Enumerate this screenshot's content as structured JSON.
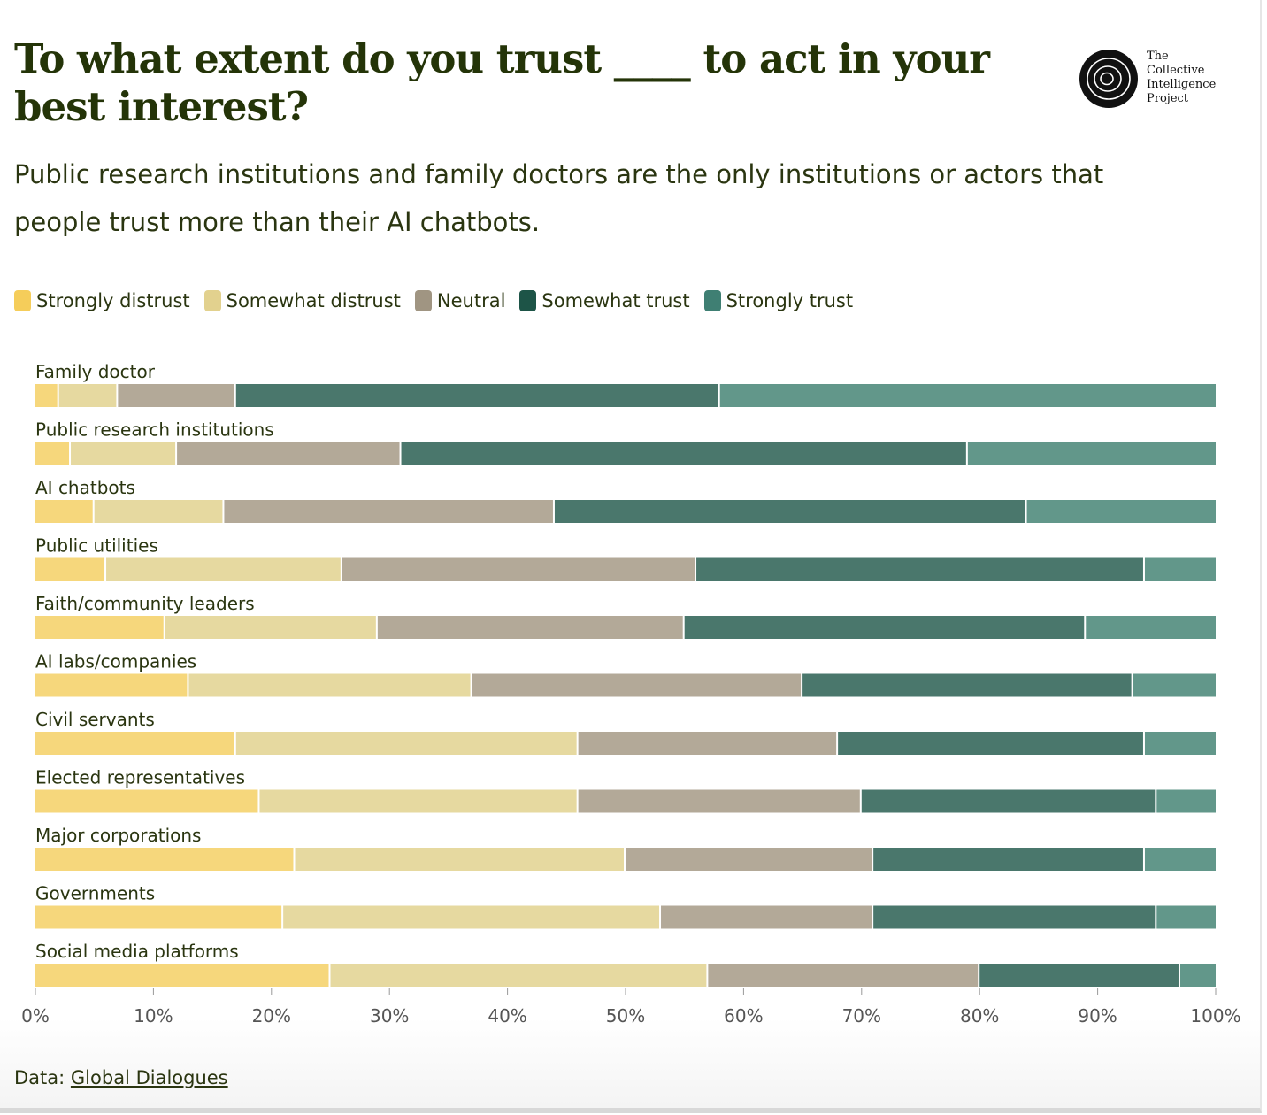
{
  "title": "To what extent do you trust ____ to act in your best interest?",
  "subtitle": "Public research institutions and family doctors are the only institutions or actors that people trust more than their AI chatbots.",
  "logo": {
    "text_lines": [
      "The",
      "Collective",
      "Intelligence",
      "Project"
    ]
  },
  "footer": {
    "prefix": "Data: ",
    "link": "Global Dialogues"
  },
  "colors": {
    "legend": [
      "#f5cd5a",
      "#e2d18e",
      "#a09582",
      "#1d5447",
      "#3f7f73"
    ],
    "bars": [
      "#f6d77c",
      "#e6d9a0",
      "#b3a998",
      "#4a776c",
      "#62978a"
    ]
  },
  "chart_data": {
    "type": "bar",
    "orientation": "horizontal-stacked-100",
    "title": "To what extent do you trust ____ to act in your best interest?",
    "categories": [
      "Family doctor",
      "Public research institutions",
      "AI chatbots",
      "Public utilities",
      "Faith/community leaders",
      "AI labs/companies",
      "Civil servants",
      "Elected representatives",
      "Major corporations",
      "Governments",
      "Social media platforms"
    ],
    "series": [
      {
        "name": "Strongly distrust",
        "values": [
          2,
          3,
          5,
          6,
          11,
          13,
          17,
          19,
          22,
          21,
          25
        ]
      },
      {
        "name": "Somewhat distrust",
        "values": [
          5,
          9,
          11,
          20,
          18,
          24,
          29,
          27,
          28,
          32,
          32
        ]
      },
      {
        "name": "Neutral",
        "values": [
          10,
          19,
          28,
          30,
          26,
          28,
          22,
          24,
          21,
          18,
          23
        ]
      },
      {
        "name": "Somewhat trust",
        "values": [
          41,
          48,
          40,
          38,
          34,
          28,
          26,
          25,
          23,
          24,
          17
        ]
      },
      {
        "name": "Strongly trust",
        "values": [
          42,
          21,
          16,
          6,
          11,
          7,
          6,
          5,
          6,
          5,
          3
        ]
      }
    ],
    "xlim": [
      0,
      100
    ],
    "xticks": [
      "0%",
      "10%",
      "20%",
      "30%",
      "40%",
      "50%",
      "60%",
      "70%",
      "80%",
      "90%",
      "100%"
    ],
    "legend_position": "top-left",
    "grid": false
  }
}
